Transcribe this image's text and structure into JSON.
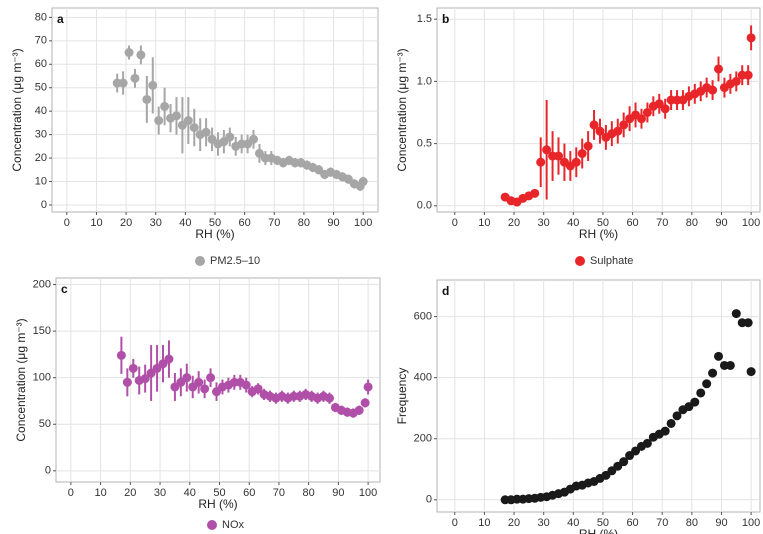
{
  "chart_data": [
    {
      "type": "scatter",
      "panel": "a",
      "xlabel": "RH (%)",
      "ylabel": "Concentration (μg m⁻³)",
      "x": [
        17,
        19,
        21,
        23,
        25,
        27,
        29,
        31,
        33,
        35,
        37,
        39,
        41,
        43,
        45,
        47,
        49,
        51,
        53,
        55,
        57,
        59,
        61,
        63,
        65,
        67,
        69,
        71,
        73,
        75,
        77,
        79,
        81,
        83,
        85,
        87,
        89,
        91,
        93,
        95,
        97,
        99,
        100
      ],
      "series": [
        {
          "name": "PM2.5–10",
          "color": "#a6a6a6",
          "values": [
            52,
            52,
            65,
            54,
            64,
            45,
            51,
            36,
            42,
            37,
            38,
            34,
            36,
            33,
            30,
            31,
            28,
            26,
            27,
            29,
            25,
            26,
            26,
            28,
            22,
            20,
            20,
            19,
            18,
            19,
            18,
            18,
            17,
            16,
            15,
            13,
            14,
            13,
            12,
            11,
            9,
            8,
            10
          ],
          "errors": [
            4,
            5,
            3,
            4,
            4,
            10,
            12,
            6,
            8,
            6,
            8,
            12,
            10,
            8,
            7,
            6,
            5,
            5,
            5,
            4,
            4,
            4,
            4,
            4,
            4,
            3,
            3,
            2,
            2,
            2,
            2,
            2,
            2,
            2,
            2,
            2,
            2,
            2,
            2,
            2,
            2,
            2,
            2
          ]
        }
      ],
      "xlim": [
        -5,
        105
      ],
      "xticks": [
        0,
        10,
        20,
        30,
        40,
        50,
        60,
        70,
        80,
        90,
        100
      ],
      "ylim": [
        -3,
        84
      ],
      "yticks": [
        0,
        10,
        20,
        30,
        40,
        50,
        60,
        70,
        80
      ],
      "grid": true,
      "legend": "bottom"
    },
    {
      "type": "scatter",
      "panel": "b",
      "xlabel": "RH (%)",
      "ylabel": "Concentration (μg m⁻³)",
      "x": [
        17,
        19,
        21,
        23,
        25,
        27,
        29,
        31,
        33,
        35,
        37,
        39,
        41,
        43,
        45,
        47,
        49,
        51,
        53,
        55,
        57,
        59,
        61,
        63,
        65,
        67,
        69,
        71,
        73,
        75,
        77,
        79,
        81,
        83,
        85,
        87,
        89,
        91,
        93,
        95,
        97,
        99,
        100
      ],
      "series": [
        {
          "name": "Sulphate",
          "color": "#e8262a",
          "values": [
            0.07,
            0.04,
            0.03,
            0.06,
            0.08,
            0.1,
            0.35,
            0.45,
            0.4,
            0.4,
            0.35,
            0.32,
            0.35,
            0.42,
            0.48,
            0.65,
            0.6,
            0.55,
            0.58,
            0.6,
            0.65,
            0.7,
            0.73,
            0.7,
            0.75,
            0.8,
            0.82,
            0.78,
            0.85,
            0.85,
            0.85,
            0.88,
            0.9,
            0.92,
            0.95,
            0.93,
            1.1,
            0.95,
            0.98,
            1.0,
            1.05,
            1.05,
            1.35
          ],
          "errors": [
            0.02,
            0.02,
            0.02,
            0.02,
            0.02,
            0.03,
            0.2,
            0.4,
            0.2,
            0.15,
            0.15,
            0.12,
            0.12,
            0.12,
            0.12,
            0.12,
            0.1,
            0.1,
            0.1,
            0.1,
            0.1,
            0.1,
            0.1,
            0.08,
            0.08,
            0.08,
            0.08,
            0.08,
            0.08,
            0.08,
            0.08,
            0.08,
            0.08,
            0.08,
            0.08,
            0.08,
            0.1,
            0.08,
            0.08,
            0.08,
            0.08,
            0.08,
            0.1
          ]
        }
      ],
      "xlim": [
        -6,
        103
      ],
      "xticks": [
        0,
        10,
        20,
        30,
        40,
        50,
        60,
        70,
        80,
        90,
        100
      ],
      "ylim": [
        -0.05,
        1.59
      ],
      "yticks": [
        {
          "value": 0,
          "label": "0.0"
        },
        0.5,
        {
          "value": 1,
          "label": "1.0"
        },
        1.5
      ],
      "grid": true,
      "legend": "bottom"
    },
    {
      "type": "scatter",
      "panel": "c",
      "xlabel": "RH (%)",
      "ylabel": "Concentration (μg m⁻³)",
      "x": [
        17,
        19,
        21,
        23,
        25,
        27,
        29,
        31,
        33,
        35,
        37,
        39,
        41,
        43,
        45,
        47,
        49,
        51,
        53,
        55,
        57,
        59,
        61,
        63,
        65,
        67,
        69,
        71,
        73,
        75,
        77,
        79,
        81,
        83,
        85,
        87,
        89,
        91,
        93,
        95,
        97,
        99,
        100
      ],
      "series": [
        {
          "name": "NOx",
          "color": "#b04fa8",
          "values": [
            124,
            95,
            110,
            97,
            99,
            105,
            110,
            115,
            120,
            90,
            95,
            100,
            90,
            95,
            88,
            100,
            85,
            90,
            92,
            95,
            95,
            92,
            85,
            88,
            82,
            80,
            78,
            80,
            78,
            80,
            80,
            82,
            80,
            78,
            80,
            78,
            68,
            65,
            63,
            62,
            65,
            73,
            90
          ],
          "errors": [
            20,
            15,
            10,
            15,
            15,
            30,
            25,
            20,
            20,
            15,
            15,
            15,
            12,
            12,
            10,
            10,
            10,
            8,
            8,
            8,
            8,
            8,
            6,
            6,
            6,
            6,
            6,
            6,
            6,
            6,
            6,
            6,
            6,
            6,
            6,
            6,
            5,
            5,
            5,
            5,
            5,
            5,
            8
          ]
        }
      ],
      "xlim": [
        -5,
        104
      ],
      "xticks": [
        0,
        10,
        20,
        30,
        40,
        50,
        60,
        70,
        80,
        90,
        100
      ],
      "ylim": [
        -12,
        207
      ],
      "yticks": [
        0,
        50,
        100,
        150,
        200
      ],
      "grid": true,
      "legend": "bottom"
    },
    {
      "type": "scatter",
      "panel": "d",
      "xlabel": "RH (%)",
      "ylabel": "Frequency",
      "x": [
        17,
        19,
        21,
        23,
        25,
        27,
        29,
        31,
        33,
        35,
        37,
        39,
        41,
        43,
        45,
        47,
        49,
        51,
        53,
        55,
        57,
        59,
        61,
        63,
        65,
        67,
        69,
        71,
        73,
        75,
        77,
        79,
        81,
        83,
        85,
        87,
        89,
        91,
        93,
        95,
        97,
        99,
        100
      ],
      "series": [
        {
          "color": "#1a1a1a",
          "values": [
            0,
            0,
            2,
            2,
            4,
            5,
            8,
            10,
            15,
            20,
            25,
            35,
            45,
            48,
            55,
            60,
            70,
            80,
            95,
            110,
            125,
            145,
            160,
            175,
            185,
            205,
            215,
            225,
            250,
            275,
            295,
            305,
            320,
            350,
            380,
            415,
            470,
            440,
            440,
            610,
            580,
            580,
            420
          ]
        }
      ],
      "xlim": [
        -6,
        103
      ],
      "xticks": [
        0,
        10,
        20,
        30,
        40,
        50,
        60,
        70,
        80,
        90,
        100
      ],
      "ylim": [
        -40,
        720
      ],
      "yticks": [
        0,
        200,
        400,
        600
      ],
      "grid": true
    }
  ]
}
